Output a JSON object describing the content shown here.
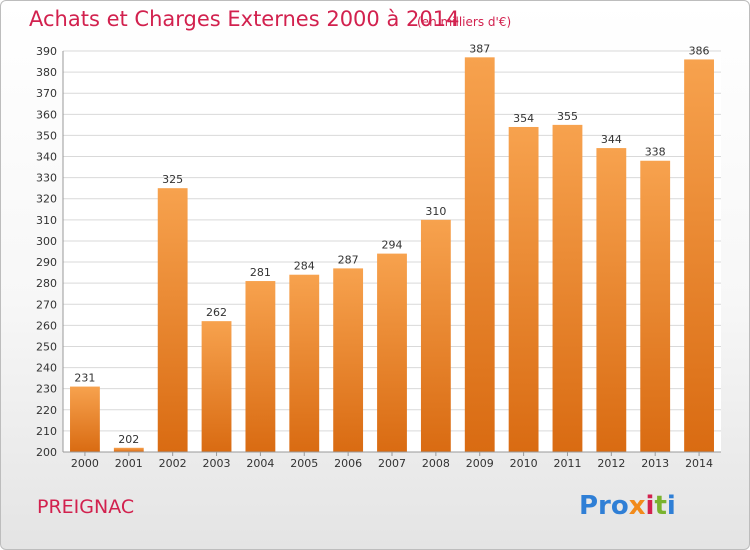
{
  "header": {
    "title": "Achats et Charges Externes 2000 à 2014",
    "subtitle": "(en milliers d'€)"
  },
  "footer": {
    "commune": "PREIGNAC",
    "logo": [
      "Pro",
      "x",
      "i",
      "t",
      "i"
    ]
  },
  "colors": {
    "title": "#d2214e",
    "bar_top": "#f7a24e",
    "bar_bottom": "#d96b12",
    "grid": "#d9d9d9",
    "text": "#333333"
  },
  "chart_data": {
    "type": "bar",
    "title": "Achats et Charges Externes 2000 à 2014",
    "xlabel": "",
    "ylabel": "",
    "categories": [
      "2000",
      "2001",
      "2002",
      "2003",
      "2004",
      "2005",
      "2006",
      "2007",
      "2008",
      "2009",
      "2010",
      "2011",
      "2012",
      "2013",
      "2014"
    ],
    "values": [
      231,
      202,
      325,
      262,
      281,
      284,
      287,
      294,
      310,
      387,
      354,
      355,
      344,
      338,
      386
    ],
    "ylim": [
      200,
      390
    ],
    "yticks": [
      200,
      210,
      220,
      230,
      240,
      250,
      260,
      270,
      280,
      290,
      300,
      310,
      320,
      330,
      340,
      350,
      360,
      370,
      380,
      390
    ],
    "grid": true,
    "legend": "none"
  }
}
